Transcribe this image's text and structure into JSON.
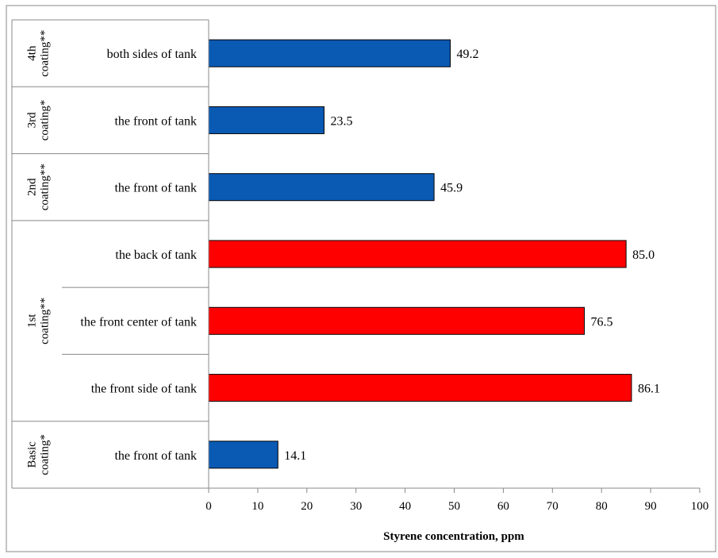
{
  "chart_data": {
    "type": "bar",
    "orientation": "horizontal",
    "xlabel": "Styrene concentration, ppm",
    "xlim": [
      0,
      100
    ],
    "xticks": [
      0,
      10,
      20,
      30,
      40,
      50,
      60,
      70,
      80,
      90,
      100
    ],
    "grid": false,
    "legend": "none",
    "groups": [
      {
        "label": [
          "4th",
          "coating**"
        ],
        "bars": [
          0
        ]
      },
      {
        "label": [
          "3rd",
          "coating*"
        ],
        "bars": [
          1
        ]
      },
      {
        "label": [
          "2nd",
          "coating**"
        ],
        "bars": [
          2
        ]
      },
      {
        "label": [
          "1st",
          "coating**"
        ],
        "bars": [
          3,
          4,
          5
        ]
      },
      {
        "label": [
          "Basic",
          "coating*"
        ],
        "bars": [
          6
        ]
      }
    ],
    "bars": [
      {
        "category": "both sides of tank",
        "value": 49.2,
        "label": "49.2",
        "color": "#0a5ab4"
      },
      {
        "category": "the front of tank",
        "value": 23.5,
        "label": "23.5",
        "color": "#0a5ab4"
      },
      {
        "category": "the front of tank",
        "value": 45.9,
        "label": "45.9",
        "color": "#0a5ab4"
      },
      {
        "category": "the back of tank",
        "value": 85.0,
        "label": "85.0",
        "color": "#ff0000"
      },
      {
        "category": "the front center of tank",
        "value": 76.5,
        "label": "76.5",
        "color": "#ff0000"
      },
      {
        "category": "the front side of tank",
        "value": 86.1,
        "label": "86.1",
        "color": "#ff0000"
      },
      {
        "category": "the front of tank",
        "value": 14.1,
        "label": "14.1",
        "color": "#0a5ab4"
      }
    ]
  }
}
